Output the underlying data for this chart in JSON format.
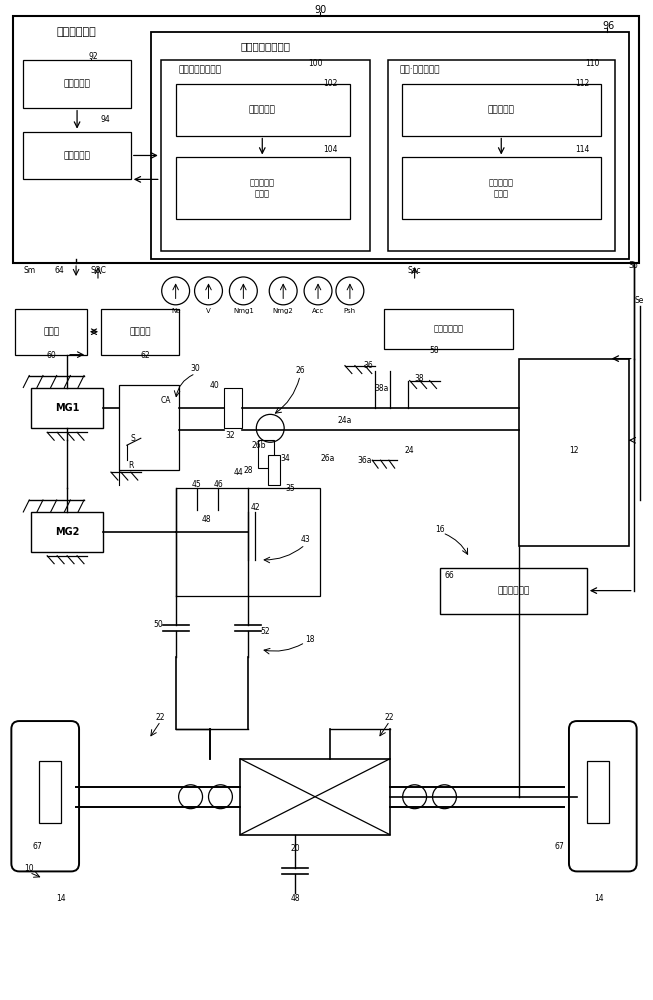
{
  "bg_color": "#ffffff",
  "line_color": "#000000",
  "text_color": "#000000",
  "labels": {
    "electronic_control": "电子控制装置",
    "engine_control": "发动机关联控制部",
    "engine_drive": "发动机旋转驱动部",
    "filter_correct1": "滤波修正部",
    "engine_filter1": "发动机旋转\n滤波部",
    "misfire_detect": "失火·异响检测部",
    "filter_correct2": "滤波修正部",
    "engine_filter2": "发动机旋转\n滤波部",
    "char_learn": "特性学习部",
    "char_store": "特性存储部",
    "inverter": "逆变器",
    "battery": "蓄电装置",
    "hydraulic": "液压控制回路",
    "auto_brake": "自动制动系统"
  }
}
